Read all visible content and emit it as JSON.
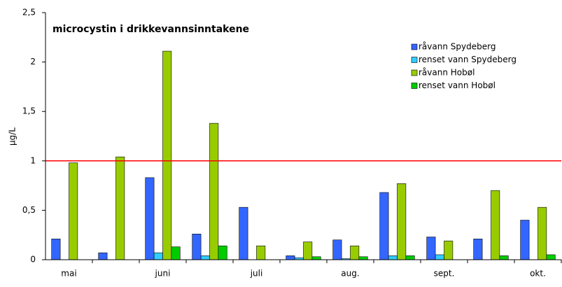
{
  "chart_data": {
    "type": "bar",
    "title": "microcystin i drikkevannsinntakene",
    "y_label": "µg/L",
    "categories": [
      "mai",
      null,
      "juni",
      null,
      "juli",
      null,
      "aug.",
      null,
      "sept.",
      null,
      "okt."
    ],
    "series": [
      {
        "name": "råvann Spydeberg",
        "color": "#3366ff",
        "values": [
          0.21,
          0.07,
          0.83,
          0.26,
          0.53,
          0.04,
          0.2,
          0.68,
          0.23,
          0.21,
          0.4
        ]
      },
      {
        "name": "renset vann Spydeberg",
        "color": "#33ccff",
        "values": [
          null,
          null,
          0.07,
          0.04,
          null,
          0.02,
          0.01,
          0.04,
          0.05,
          null,
          null
        ]
      },
      {
        "name": "råvann Hobøl",
        "color": "#99cc00",
        "values": [
          0.98,
          1.04,
          2.11,
          1.38,
          0.14,
          0.18,
          0.14,
          0.77,
          0.19,
          0.7,
          0.53
        ]
      },
      {
        "name": "renset vann Hobøl",
        "color": "#00cc00",
        "values": [
          null,
          null,
          0.13,
          0.14,
          null,
          0.03,
          0.03,
          0.04,
          null,
          0.04,
          0.05
        ]
      }
    ],
    "ylim": [
      0,
      2.5
    ],
    "yticks": [
      0,
      {
        "value": 0.5,
        "label": "0,5"
      },
      1,
      {
        "value": 1.5,
        "label": "1,5"
      },
      2,
      {
        "value": 2.5,
        "label": "2,5"
      }
    ],
    "reference_line": {
      "value": 1,
      "color": "#ff0000"
    },
    "legend": "upper right"
  }
}
